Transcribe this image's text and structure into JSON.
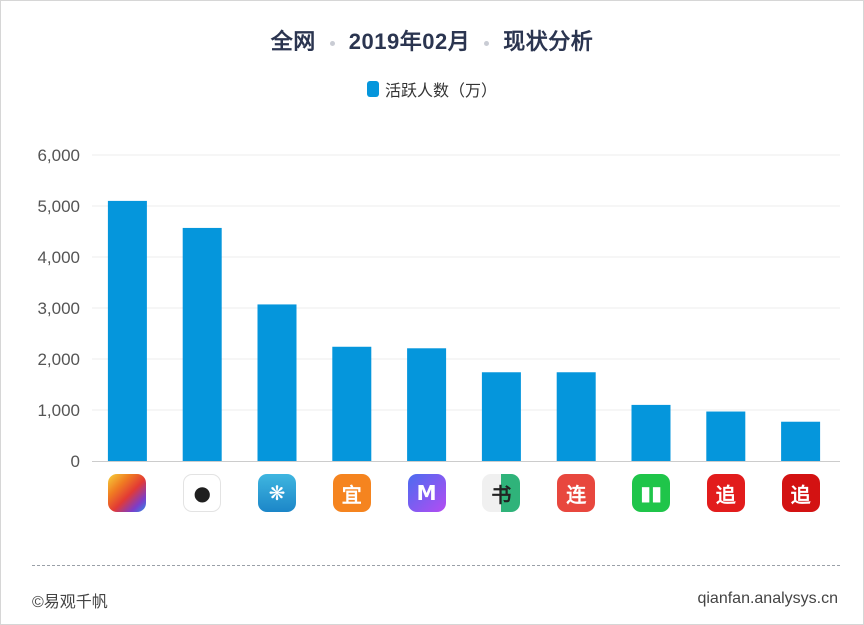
{
  "header": {
    "title_part1": "全网",
    "title_part2": "2019年02月",
    "title_part3": "现状分析"
  },
  "footer": {
    "left": "©易观千帆",
    "right": "qianfan.analysys.cn"
  },
  "colors": {
    "bar": "#0596dc",
    "grid": "#ececec",
    "axis_text": "#555555"
  },
  "icons": [
    "colorful-book-app-icon",
    "qq-reading-app-icon",
    "palmreader-app-icon",
    "yidu-app-icon",
    "m-reader-app-icon",
    "shuqi-novel-app-icon",
    "lianshang-reader-app-icon",
    "green-book-app-icon",
    "zhuishu-app-icon",
    "zhuishu-red-app-icon"
  ],
  "chart_data": {
    "type": "bar",
    "title": "全网 2019年02月 现状分析",
    "legend": {
      "label": "活跃人数（万）",
      "position": "top-center"
    },
    "categories": [
      "",
      "",
      "",
      "",
      "",
      "",
      "",
      "",
      "",
      ""
    ],
    "series": [
      {
        "name": "活跃人数（万）",
        "values": [
          5100,
          4570,
          3070,
          2240,
          2210,
          1740,
          1740,
          1100,
          970,
          770
        ]
      }
    ],
    "ylim": [
      0,
      6000
    ],
    "yticks": [
      0,
      1000,
      2000,
      3000,
      4000,
      5000,
      6000
    ],
    "ytick_labels": [
      "0",
      "1,000",
      "2,000",
      "3,000",
      "4,000",
      "5,000",
      "6,000"
    ],
    "grid": true
  }
}
